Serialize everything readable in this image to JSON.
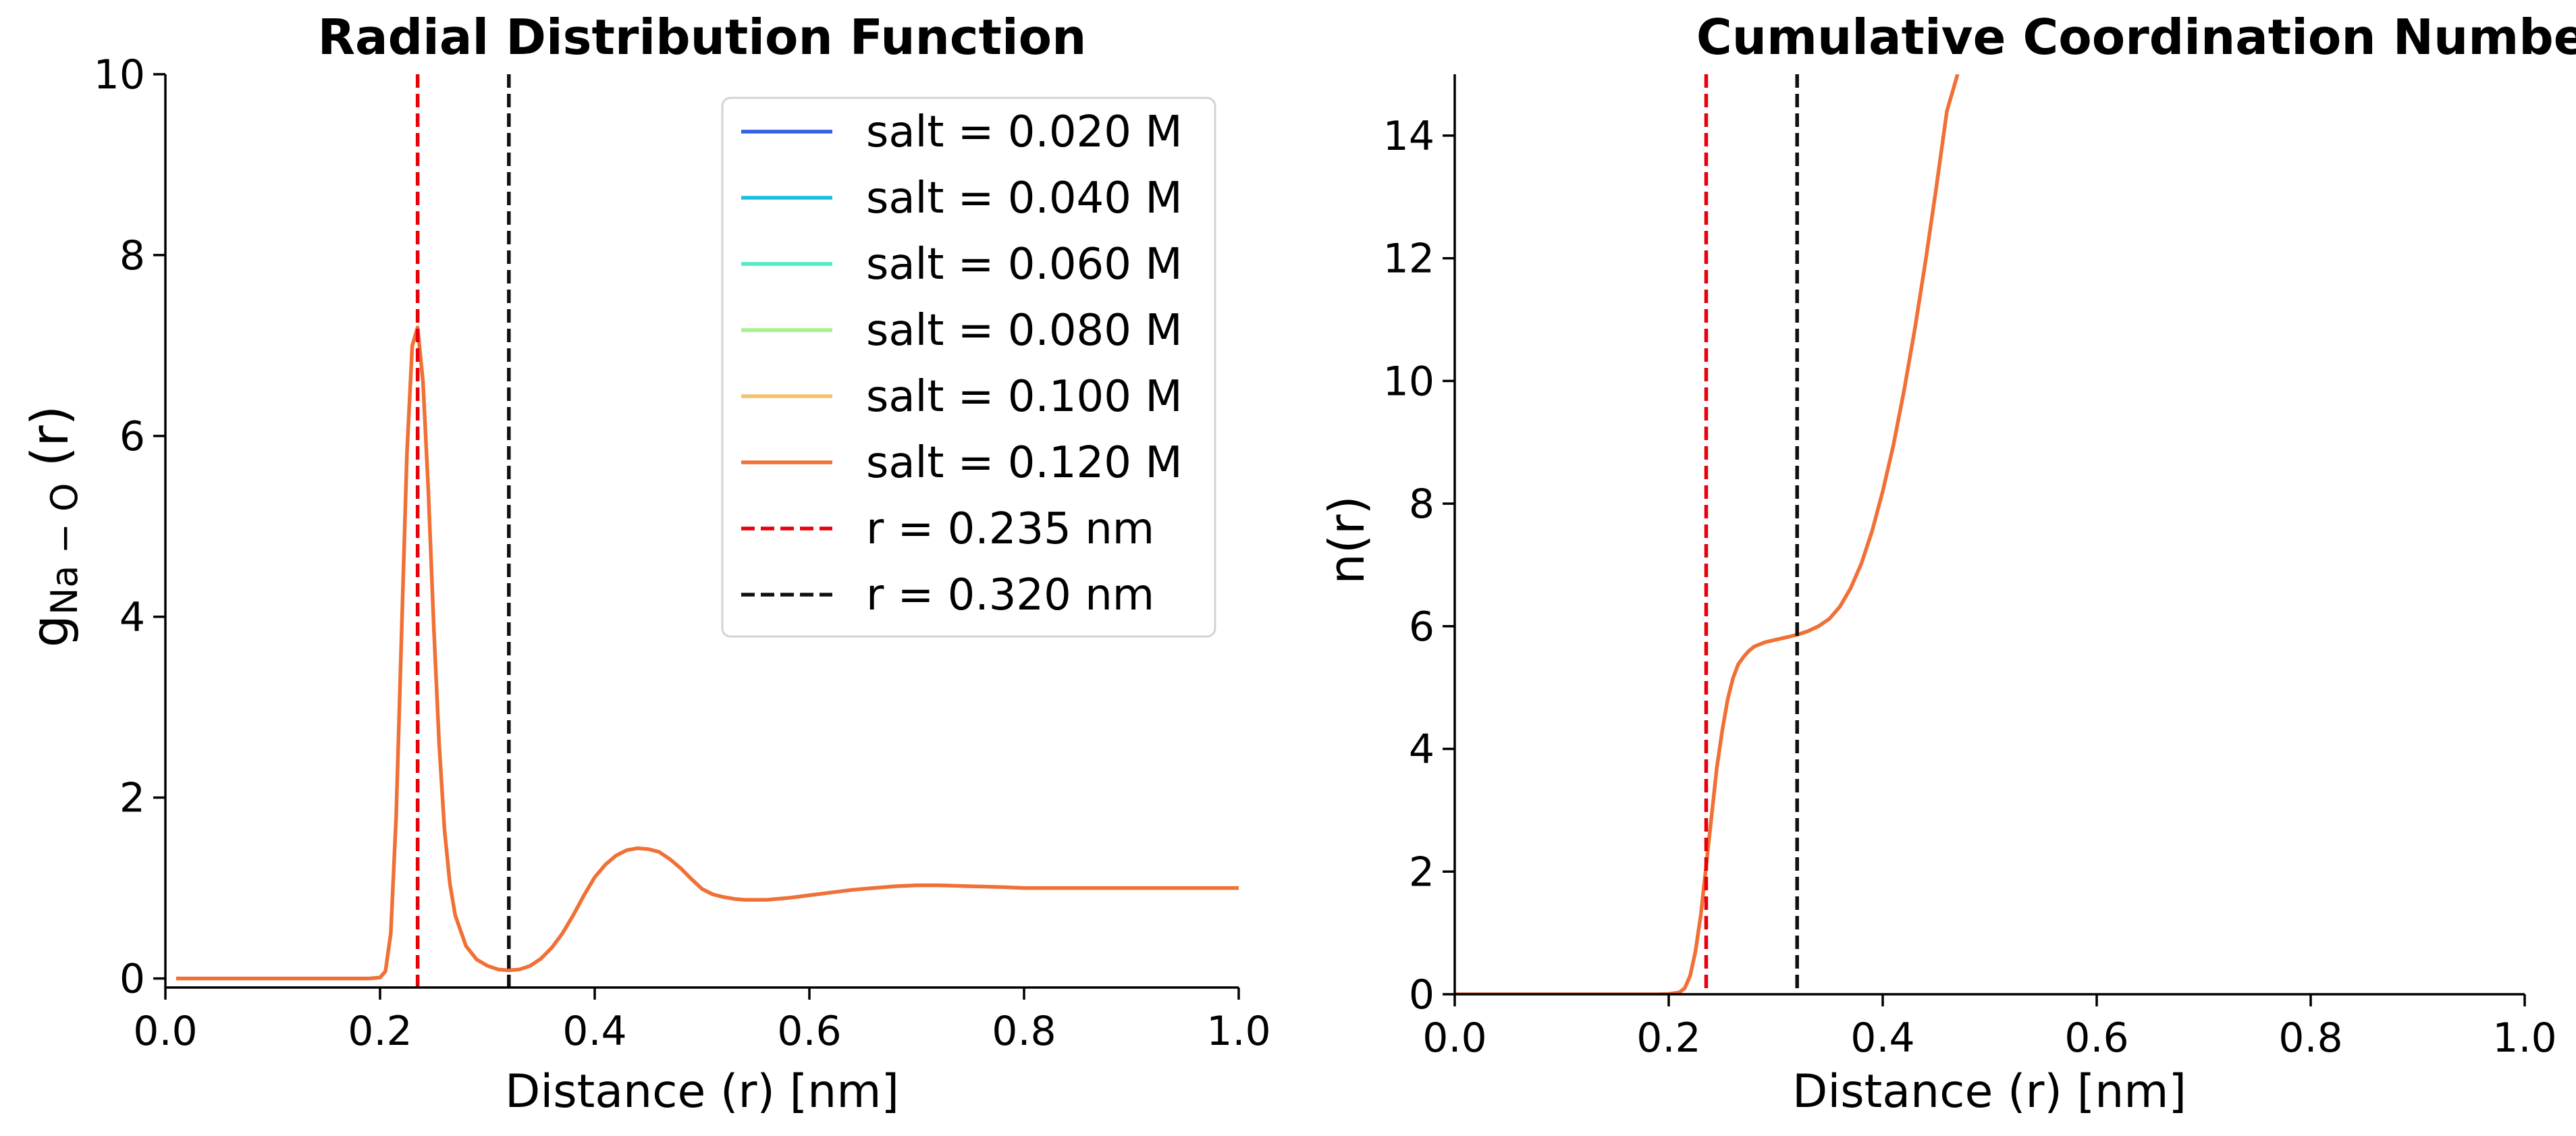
{
  "chart_data": [
    {
      "type": "line",
      "title": "Radial Distribution Function",
      "xlabel": "Distance (r) [nm]",
      "ylabel_main": "g",
      "ylabel_sub": "Na − O",
      "ylabel_tail": " (r)",
      "xlim": [
        0.0,
        1.0
      ],
      "ylim": [
        -0.1,
        10
      ],
      "xticks": [
        0.0,
        0.2,
        0.4,
        0.6,
        0.8,
        1.0
      ],
      "xtick_labels": [
        "0.0",
        "0.2",
        "0.4",
        "0.6",
        "0.8",
        "1.0"
      ],
      "yticks": [
        0,
        2,
        4,
        6,
        8,
        10
      ],
      "ytick_labels": [
        "0",
        "2",
        "4",
        "6",
        "8",
        "10"
      ],
      "grid": false,
      "legend_position": "top-right",
      "series": [
        {
          "name": "salt = 0.020 M",
          "color": "#2f5ee8"
        },
        {
          "name": "salt = 0.040 M",
          "color": "#1bbfe0"
        },
        {
          "name": "salt = 0.060 M",
          "color": "#52ecc3"
        },
        {
          "name": "salt = 0.080 M",
          "color": "#a4f28c"
        },
        {
          "name": "salt = 0.100 M",
          "color": "#f0c36b"
        },
        {
          "name": "salt = 0.120 M",
          "color": "#f07036",
          "x": [
            0.01,
            0.05,
            0.1,
            0.15,
            0.19,
            0.2,
            0.205,
            0.21,
            0.215,
            0.22,
            0.225,
            0.23,
            0.235,
            0.24,
            0.245,
            0.25,
            0.255,
            0.26,
            0.265,
            0.27,
            0.28,
            0.29,
            0.3,
            0.31,
            0.32,
            0.33,
            0.34,
            0.35,
            0.36,
            0.37,
            0.38,
            0.39,
            0.4,
            0.41,
            0.42,
            0.43,
            0.44,
            0.45,
            0.46,
            0.47,
            0.48,
            0.49,
            0.5,
            0.51,
            0.52,
            0.53,
            0.54,
            0.55,
            0.56,
            0.57,
            0.58,
            0.6,
            0.62,
            0.64,
            0.66,
            0.68,
            0.7,
            0.72,
            0.75,
            0.78,
            0.8,
            0.85,
            0.9,
            0.95,
            1.0
          ],
          "y": [
            0,
            0,
            0,
            0,
            0,
            0.01,
            0.08,
            0.5,
            1.8,
            3.8,
            5.8,
            7.0,
            7.2,
            6.6,
            5.4,
            3.9,
            2.6,
            1.65,
            1.05,
            0.7,
            0.36,
            0.21,
            0.14,
            0.1,
            0.09,
            0.1,
            0.14,
            0.22,
            0.34,
            0.5,
            0.7,
            0.92,
            1.12,
            1.26,
            1.36,
            1.42,
            1.44,
            1.43,
            1.4,
            1.32,
            1.22,
            1.1,
            0.99,
            0.93,
            0.9,
            0.88,
            0.87,
            0.87,
            0.87,
            0.88,
            0.89,
            0.92,
            0.95,
            0.98,
            1.0,
            1.02,
            1.03,
            1.03,
            1.02,
            1.01,
            1.0,
            1.0,
            1.0,
            1.0,
            1.0
          ]
        },
        {
          "name": "r = 0.235 nm",
          "color": "#e8000b",
          "style": "dashed",
          "vline": 0.235
        },
        {
          "name": "r = 0.320 nm",
          "color": "#111111",
          "style": "dashed",
          "vline": 0.32
        }
      ]
    },
    {
      "type": "line",
      "title": "Cumulative Coordination Number",
      "xlabel": "Distance (r) [nm]",
      "ylabel": "n(r)",
      "xlim": [
        0.0,
        1.0
      ],
      "ylim": [
        0,
        15
      ],
      "xticks": [
        0.0,
        0.2,
        0.4,
        0.6,
        0.8,
        1.0
      ],
      "xtick_labels": [
        "0.0",
        "0.2",
        "0.4",
        "0.6",
        "0.8",
        "1.0"
      ],
      "yticks": [
        0,
        2,
        4,
        6,
        8,
        10,
        12,
        14
      ],
      "ytick_labels": [
        "0",
        "2",
        "4",
        "6",
        "8",
        "10",
        "12",
        "14"
      ],
      "grid": false,
      "series": [
        {
          "color": "#f07036",
          "x": [
            0.0,
            0.1,
            0.19,
            0.2,
            0.21,
            0.215,
            0.22,
            0.225,
            0.23,
            0.235,
            0.24,
            0.245,
            0.25,
            0.255,
            0.26,
            0.265,
            0.27,
            0.275,
            0.28,
            0.29,
            0.3,
            0.31,
            0.32,
            0.33,
            0.34,
            0.35,
            0.36,
            0.37,
            0.38,
            0.39,
            0.4,
            0.41,
            0.42,
            0.43,
            0.44,
            0.45,
            0.46,
            0.47
          ],
          "y": [
            0,
            0,
            0,
            0.005,
            0.03,
            0.1,
            0.3,
            0.7,
            1.3,
            2.1,
            2.9,
            3.7,
            4.3,
            4.8,
            5.15,
            5.38,
            5.5,
            5.6,
            5.67,
            5.74,
            5.78,
            5.82,
            5.86,
            5.92,
            6.0,
            6.12,
            6.32,
            6.62,
            7.02,
            7.55,
            8.2,
            8.95,
            9.85,
            10.85,
            11.95,
            13.15,
            14.4,
            15.0
          ]
        },
        {
          "color": "#e8000b",
          "style": "dashed",
          "vline": 0.235
        },
        {
          "color": "#111111",
          "style": "dashed",
          "vline": 0.32
        }
      ]
    }
  ]
}
